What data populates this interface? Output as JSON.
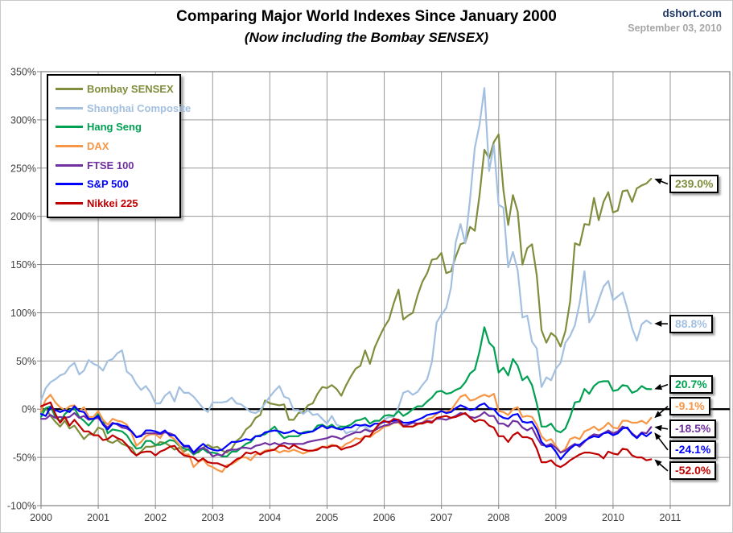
{
  "header": {
    "title": "Comparing Major World Indexes Since January 2000",
    "subtitle": "(Now including the Bombay SENSEX)",
    "source": "dshort.com",
    "date": "September 03, 2010",
    "source_color": "#1F3864",
    "date_color": "#A6A6A6"
  },
  "chart_data": {
    "type": "line",
    "title": "Comparing Major World Indexes Since January 2000",
    "subtitle": "(Now including the Bombay SENSEX)",
    "x_unit": "months",
    "x_start_year": 2000,
    "x_end_label_date": "2010-09-03",
    "x_ticks": [
      2000,
      2001,
      2002,
      2003,
      2004,
      2005,
      2006,
      2007,
      2008,
      2009,
      2010,
      2011
    ],
    "y_ticks": [
      350,
      300,
      250,
      200,
      150,
      100,
      50,
      0,
      -50,
      -100
    ],
    "y_tick_suffix": "%",
    "ylim": [
      -100,
      350
    ],
    "grid": true,
    "zero_line": true,
    "legend_position": "top-left",
    "grid_color": "#9a9a9a",
    "axis_label_color": "#3f3f3f",
    "series": [
      {
        "name": "Bombay SENSEX",
        "color": "#7E8E3C",
        "end_label": "239.0%",
        "label_y": 233.5,
        "values": [
          -3,
          1,
          -7,
          -13,
          -18,
          -12,
          -20,
          -17,
          -24,
          -31,
          -26,
          -26,
          -19,
          -21,
          -33,
          -35,
          -32,
          -36,
          -38,
          -40,
          -48,
          -44,
          -39,
          -39,
          -38,
          -34,
          -35,
          -38,
          -42,
          -40,
          -44,
          -41,
          -44,
          -45,
          -40,
          -37,
          -40,
          -39,
          -43,
          -45,
          -41,
          -33,
          -29,
          -21,
          -17,
          -9,
          -6,
          9,
          6,
          5,
          4,
          5,
          -11,
          -11,
          -4,
          -3,
          4,
          6,
          16,
          23,
          22,
          25,
          21,
          14,
          25,
          34,
          42,
          45,
          61,
          47,
          64,
          75,
          85,
          93,
          110,
          124,
          93,
          97,
          100,
          118,
          132,
          141,
          155,
          156,
          162,
          141,
          143,
          158,
          171,
          173,
          189,
          185,
          222,
          269,
          260,
          277,
          285,
          227,
          191,
          222,
          205,
          150,
          167,
          171,
          139,
          82,
          69,
          79,
          75,
          65,
          81,
          112,
          172,
          170,
          192,
          191,
          219,
          196,
          215,
          225,
          204,
          206,
          226,
          227,
          215,
          229,
          232,
          234,
          239.0
        ]
      },
      {
        "name": "Shanghai Composite",
        "color": "#A3C0E0",
        "end_label": "88.8%",
        "label_y": 88.5,
        "values": [
          9,
          22,
          28,
          31,
          35,
          37,
          44,
          48,
          36,
          40,
          51,
          47,
          45,
          40,
          50,
          52,
          58,
          61,
          39,
          35,
          26,
          20,
          24,
          17,
          6,
          6,
          14,
          18,
          8,
          23,
          17,
          17,
          13,
          7,
          1,
          -3,
          7,
          7,
          7,
          8,
          12,
          6,
          5,
          1,
          -3,
          -4,
          -1,
          6,
          13,
          19,
          24,
          13,
          11,
          -1,
          -1,
          -5,
          -1,
          -6,
          -5,
          -10,
          -15,
          -7,
          -16,
          -18,
          -25,
          -23,
          -23,
          -17,
          -18,
          -22,
          -22,
          -17,
          -11,
          -8,
          -8,
          2,
          17,
          19,
          15,
          18,
          25,
          31,
          49,
          90,
          98,
          105,
          126,
          173,
          192,
          172,
          218,
          271,
          295,
          333,
          247,
          274,
          212,
          209,
          147,
          163,
          144,
          95,
          97,
          70,
          63,
          23,
          33,
          30,
          42,
          48,
          69,
          76,
          87,
          110,
          143,
          90,
          98,
          113,
          127,
          133,
          113,
          117,
          121,
          104,
          84,
          71,
          88,
          92,
          88.8
        ]
      },
      {
        "name": "Hang Seng",
        "color": "#00A052",
        "end_label": "20.7%",
        "label_y": 25.5,
        "values": [
          -8,
          1,
          3,
          -8,
          -13,
          -5,
          -1,
          1,
          -8,
          -12,
          -17,
          -11,
          -5,
          -11,
          -25,
          -21,
          -22,
          -23,
          -27,
          -35,
          -41,
          -40,
          -33,
          -33,
          -37,
          -37,
          -35,
          -32,
          -33,
          -38,
          -41,
          -42,
          -47,
          -44,
          -41,
          -45,
          -45,
          -46,
          -49,
          -49,
          -44,
          -44,
          -40,
          -36,
          -34,
          -28,
          -27,
          -26,
          -22,
          -18,
          -25,
          -30,
          -28,
          -28,
          -28,
          -24,
          -23,
          -23,
          -17,
          -16,
          -19,
          -16,
          -20,
          -18,
          -18,
          -16,
          -12,
          -11,
          -9,
          -15,
          -12,
          -12,
          -7,
          -6,
          -7,
          -2,
          -7,
          -4,
          0,
          3,
          3,
          8,
          12,
          18,
          19,
          16,
          17,
          20,
          22,
          28,
          37,
          41,
          60,
          85,
          69,
          64,
          38,
          43,
          35,
          52,
          45,
          30,
          34,
          25,
          6,
          -18,
          -18,
          -15,
          -22,
          -24,
          -20,
          -8,
          7,
          8,
          21,
          16,
          24,
          28,
          29,
          29,
          19,
          20,
          25,
          24,
          17,
          19,
          24,
          21,
          20.7
        ]
      },
      {
        "name": "DAX",
        "color": "#F79646",
        "end_label": "-9.1%",
        "label_y": 3.0,
        "values": [
          -2,
          10,
          15,
          7,
          2,
          -1,
          3,
          4,
          -2,
          2,
          -8,
          -8,
          -2,
          -11,
          -16,
          -10,
          -12,
          -13,
          -16,
          -25,
          -38,
          -34,
          -28,
          -26,
          -26,
          -30,
          -22,
          -28,
          -31,
          -37,
          -47,
          -47,
          -60,
          -55,
          -52,
          -58,
          -60,
          -63,
          -65,
          -58,
          -57,
          -54,
          -50,
          -50,
          -53,
          -47,
          -46,
          -43,
          -42,
          -42,
          -45,
          -43,
          -44,
          -42,
          -44,
          -46,
          -44,
          -43,
          -41,
          -39,
          -39,
          -37,
          -38,
          -40,
          -36,
          -34,
          -30,
          -31,
          -28,
          -29,
          -25,
          -22,
          -18,
          -17,
          -14,
          -14,
          -18,
          -18,
          -18,
          -16,
          -14,
          -10,
          -9,
          -5,
          -2,
          -3,
          -1,
          6,
          13,
          15,
          9,
          10,
          13,
          15,
          13,
          16,
          -2,
          -3,
          -6,
          0,
          2,
          -8,
          -7,
          -8,
          -16,
          -28,
          -33,
          -31,
          -38,
          -45,
          -41,
          -31,
          -29,
          -31,
          -23,
          -21,
          -18,
          -22,
          -19,
          -14,
          -19,
          -20,
          -12,
          -12,
          -14,
          -14,
          -12,
          -15,
          -9.1
        ]
      },
      {
        "name": "FTSE 100",
        "color": "#7030A0",
        "end_label": "-18.5%",
        "label_y": -20.5,
        "values": [
          -10,
          -10,
          -6,
          -9,
          -8,
          -9,
          -8,
          -4,
          -9,
          -7,
          -11,
          -10,
          -9,
          -15,
          -19,
          -14,
          -16,
          -19,
          -20,
          -23,
          -29,
          -27,
          -25,
          -25,
          -25,
          -26,
          -24,
          -25,
          -27,
          -33,
          -39,
          -39,
          -46,
          -42,
          -40,
          -43,
          -49,
          -47,
          -48,
          -43,
          -42,
          -42,
          -40,
          -40,
          -41,
          -38,
          -37,
          -35,
          -37,
          -35,
          -37,
          -35,
          -36,
          -36,
          -36,
          -36,
          -34,
          -33,
          -32,
          -31,
          -30,
          -28,
          -29,
          -31,
          -28,
          -26,
          -24,
          -24,
          -21,
          -23,
          -22,
          -19,
          -17,
          -16,
          -14,
          -13,
          -17,
          -16,
          -14,
          -15,
          -14,
          -12,
          -13,
          -10,
          -10,
          -11,
          -9,
          -7,
          -4,
          -5,
          -8,
          -9,
          -7,
          -3,
          -7,
          -7,
          -15,
          -15,
          -18,
          -12,
          -13,
          -19,
          -22,
          -19,
          -29,
          -37,
          -38,
          -36,
          -40,
          -45,
          -43,
          -39,
          -36,
          -39,
          -34,
          -29,
          -26,
          -27,
          -25,
          -22,
          -25,
          -23,
          -18,
          -20,
          -25,
          -29,
          -24,
          -25,
          -18.5
        ]
      },
      {
        "name": "S&P 500",
        "color": "#0000FF",
        "end_label": "-24.1%",
        "label_y": -42.3,
        "values": [
          -5,
          -7,
          2,
          -1,
          -3,
          -1,
          -3,
          3,
          -2,
          -3,
          -10,
          -10,
          -7,
          -16,
          -21,
          -15,
          -15,
          -17,
          -18,
          -23,
          -29,
          -28,
          -22,
          -22,
          -23,
          -25,
          -22,
          -27,
          -27,
          -33,
          -38,
          -38,
          -45,
          -40,
          -36,
          -40,
          -42,
          -43,
          -42,
          -38,
          -34,
          -34,
          -33,
          -31,
          -32,
          -28,
          -28,
          -24,
          -23,
          -22,
          -23,
          -25,
          -24,
          -22,
          -25,
          -25,
          -24,
          -23,
          -20,
          -17,
          -20,
          -18,
          -20,
          -21,
          -19,
          -19,
          -16,
          -17,
          -16,
          -18,
          -15,
          -15,
          -13,
          -13,
          -12,
          -11,
          -14,
          -14,
          -13,
          -11,
          -9,
          -6,
          -5,
          -4,
          -2,
          -4,
          -3,
          1,
          4,
          2,
          -1,
          0,
          4,
          6,
          1,
          0,
          -6,
          -9,
          -10,
          -6,
          -5,
          -13,
          -14,
          -13,
          -21,
          -34,
          -39,
          -38,
          -44,
          -52,
          -46,
          -41,
          -37,
          -37,
          -33,
          -30,
          -28,
          -29,
          -25,
          -24,
          -27,
          -25,
          -20,
          -19,
          -26,
          -30,
          -25,
          -28,
          -24.1
        ]
      },
      {
        "name": "Nikkei 225",
        "color": "#C00000",
        "end_label": "-52.0%",
        "label_y": -64.0,
        "values": [
          3,
          5,
          7,
          -5,
          -14,
          -8,
          -17,
          -11,
          -17,
          -23,
          -23,
          -27,
          -27,
          -32,
          -31,
          -27,
          -30,
          -32,
          -37,
          -44,
          -48,
          -45,
          -44,
          -44,
          -48,
          -44,
          -42,
          -39,
          -38,
          -44,
          -48,
          -49,
          -50,
          -54,
          -51,
          -55,
          -56,
          -56,
          -58,
          -60,
          -56,
          -52,
          -50,
          -45,
          -46,
          -44,
          -47,
          -44,
          -43,
          -42,
          -38,
          -38,
          -41,
          -37,
          -40,
          -42,
          -43,
          -43,
          -42,
          -39,
          -40,
          -38,
          -38,
          -42,
          -40,
          -39,
          -37,
          -34,
          -28,
          -28,
          -21,
          -15,
          -12,
          -14,
          -10,
          -11,
          -18,
          -18,
          -18,
          -15,
          -15,
          -13,
          -14,
          -9,
          -8,
          -7,
          -9,
          -8,
          -6,
          -4,
          -9,
          -13,
          -11,
          -12,
          -17,
          -19,
          -28,
          -28,
          -34,
          -27,
          -24,
          -29,
          -29,
          -31,
          -41,
          -55,
          -55,
          -53,
          -58,
          -60,
          -57,
          -53,
          -50,
          -47,
          -45,
          -45,
          -46,
          -47,
          -51,
          -44,
          -46,
          -47,
          -41,
          -42,
          -48,
          -50,
          -50,
          -53,
          -52.0
        ]
      }
    ]
  }
}
